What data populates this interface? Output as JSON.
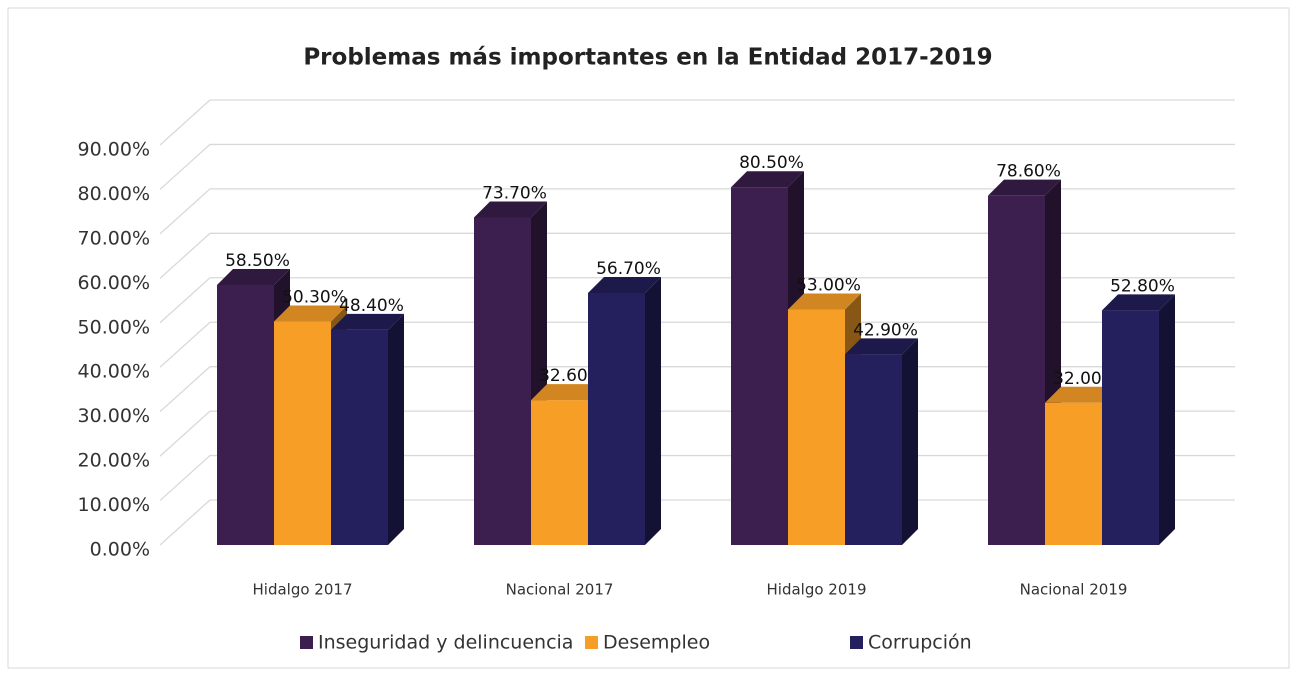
{
  "chart_data": {
    "type": "bar3d",
    "title": "Problemas más importantes en la Entidad 2017-2019",
    "categories": [
      "Hidalgo 2017",
      "Nacional 2017",
      "Hidalgo 2019",
      "Nacional 2019"
    ],
    "series": [
      {
        "name": "Inseguridad y delincuencia",
        "color": "#3c1f4f",
        "values": [
          58.5,
          73.7,
          80.5,
          78.6
        ],
        "value_labels": [
          "58.50%",
          "73.70%",
          "80.50%",
          "78.60%"
        ]
      },
      {
        "name": "Desempleo",
        "color": "#f79e27",
        "values": [
          50.3,
          32.6,
          53.0,
          32.0
        ],
        "value_labels": [
          "50.30%",
          "32.60%",
          "53.00%",
          "32.00%"
        ]
      },
      {
        "name": "Corrupción",
        "color": "#24205e",
        "values": [
          48.4,
          56.7,
          42.9,
          52.8
        ],
        "value_labels": [
          "48.40%",
          "56.70%",
          "42.90%",
          "52.80%"
        ]
      }
    ],
    "ylim": [
      0,
      90
    ],
    "yticks": [
      {
        "value": 0,
        "label": "0.00%"
      },
      {
        "value": 10,
        "label": "10.00%"
      },
      {
        "value": 20,
        "label": "20.00%"
      },
      {
        "value": 30,
        "label": "30.00%"
      },
      {
        "value": 40,
        "label": "40.00%"
      },
      {
        "value": 50,
        "label": "50.00%"
      },
      {
        "value": 60,
        "label": "60.00%"
      },
      {
        "value": 70,
        "label": "70.00%"
      },
      {
        "value": 80,
        "label": "80.00%"
      },
      {
        "value": 90,
        "label": "90.00%"
      }
    ],
    "grid": true,
    "legend": "bottom"
  }
}
